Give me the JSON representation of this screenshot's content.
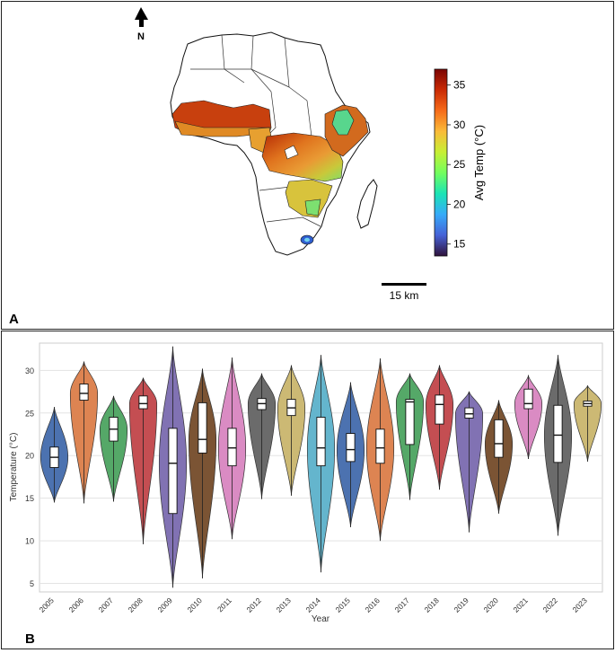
{
  "panel_a": {
    "letter": "A",
    "north_label": "N",
    "scale_bar_label": "15 km",
    "colorbar": {
      "label": "Avg Temp (°C)",
      "ticks": [
        15,
        20,
        25,
        30,
        35
      ],
      "min": 13.5,
      "max": 37,
      "colors": [
        "#30123b",
        "#4662d7",
        "#36aaf9",
        "#1ae4b6",
        "#72fe5e",
        "#c7ef34",
        "#fabb39",
        "#f66b19",
        "#ca2a04",
        "#7a0403"
      ]
    }
  },
  "panel_b": {
    "letter": "B"
  },
  "chart_data": [
    {
      "type": "violin",
      "xlabel": "Year",
      "ylabel": "Temperature (°C)",
      "ylim": [
        4,
        33.2
      ],
      "yticks": [
        5,
        10,
        15,
        20,
        25,
        30
      ],
      "grid": true,
      "categories": [
        "2005",
        "2006",
        "2007",
        "2008",
        "2009",
        "2010",
        "2011",
        "2012",
        "2013",
        "2014",
        "2015",
        "2016",
        "2017",
        "2018",
        "2019",
        "2020",
        "2021",
        "2022",
        "2023"
      ],
      "series": [
        {
          "year": "2005",
          "color": "#4c72b0",
          "min": 14.5,
          "max": 25.7,
          "q1": 18.6,
          "median": 19.8,
          "q3": 21.0
        },
        {
          "year": "2006",
          "color": "#dd8452",
          "min": 14.4,
          "max": 31.0,
          "q1": 26.5,
          "median": 27.3,
          "q3": 28.4
        },
        {
          "year": "2007",
          "color": "#55a868",
          "min": 14.6,
          "max": 27.0,
          "q1": 21.7,
          "median": 23.1,
          "q3": 24.5
        },
        {
          "year": "2008",
          "color": "#c44e52",
          "min": 9.6,
          "max": 29.1,
          "q1": 25.5,
          "median": 26.1,
          "q3": 27.0
        },
        {
          "year": "2009",
          "color": "#8172b3",
          "min": 4.5,
          "max": 32.8,
          "q1": 13.2,
          "median": 19.1,
          "q3": 23.2
        },
        {
          "year": "2010",
          "color": "#7b5434",
          "min": 5.6,
          "max": 30.2,
          "q1": 20.3,
          "median": 21.9,
          "q3": 26.2
        },
        {
          "year": "2011",
          "color": "#da8bc3",
          "min": 10.2,
          "max": 31.5,
          "q1": 18.8,
          "median": 20.9,
          "q3": 23.2
        },
        {
          "year": "2012",
          "color": "#6b6b6b",
          "min": 14.9,
          "max": 29.6,
          "q1": 25.4,
          "median": 26.1,
          "q3": 26.7
        },
        {
          "year": "2013",
          "color": "#ccb974",
          "min": 15.3,
          "max": 30.6,
          "q1": 24.7,
          "median": 25.6,
          "q3": 26.6
        },
        {
          "year": "2014",
          "color": "#64b5cd",
          "min": 6.3,
          "max": 31.8,
          "q1": 18.8,
          "median": 20.9,
          "q3": 24.5
        },
        {
          "year": "2015",
          "color": "#4c72b0",
          "min": 11.6,
          "max": 28.6,
          "q1": 19.3,
          "median": 20.7,
          "q3": 22.6
        },
        {
          "year": "2016",
          "color": "#dd8452",
          "min": 10.0,
          "max": 31.4,
          "q1": 19.1,
          "median": 20.9,
          "q3": 23.1
        },
        {
          "year": "2017",
          "color": "#55a868",
          "min": 14.8,
          "max": 29.6,
          "q1": 21.3,
          "median": 26.3,
          "q3": 26.6
        },
        {
          "year": "2018",
          "color": "#c44e52",
          "min": 16.0,
          "max": 30.6,
          "q1": 23.7,
          "median": 26.0,
          "q3": 27.1
        },
        {
          "year": "2019",
          "color": "#8172b3",
          "min": 11.0,
          "max": 27.5,
          "q1": 24.4,
          "median": 24.9,
          "q3": 25.6
        },
        {
          "year": "2020",
          "color": "#7b5434",
          "min": 13.2,
          "max": 26.5,
          "q1": 19.8,
          "median": 21.4,
          "q3": 24.2
        },
        {
          "year": "2021",
          "color": "#da8bc3",
          "min": 19.6,
          "max": 29.4,
          "q1": 25.5,
          "median": 26.1,
          "q3": 27.8
        },
        {
          "year": "2022",
          "color": "#6b6b6b",
          "min": 10.6,
          "max": 31.8,
          "q1": 19.2,
          "median": 22.4,
          "q3": 25.9
        },
        {
          "year": "2023",
          "color": "#ccb974",
          "min": 19.3,
          "max": 28.2,
          "q1": 25.8,
          "median": 26.1,
          "q3": 26.4
        }
      ]
    }
  ]
}
